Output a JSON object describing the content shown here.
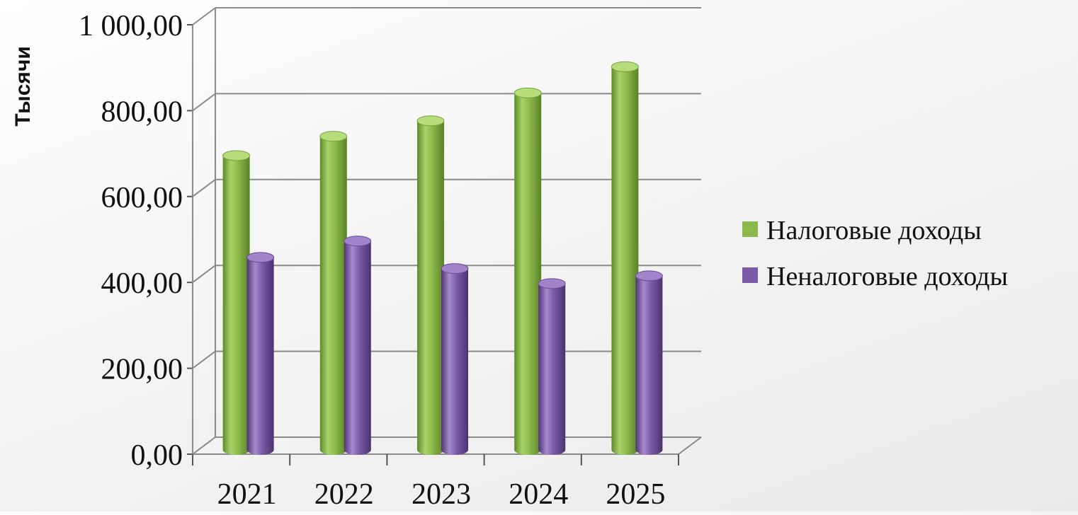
{
  "chart_data": {
    "type": "bar",
    "style": "3d-cylinder",
    "categories": [
      "2021",
      "2022",
      "2023",
      "2024",
      "2025"
    ],
    "series": [
      {
        "name": "Налоговые доходы",
        "color": "#8db84a",
        "values": [
          692,
          737,
          773,
          838,
          899
        ]
      },
      {
        "name": "Неналоговые доходы",
        "color": "#7b5ba6",
        "values": [
          455,
          493,
          429,
          394,
          412
        ]
      }
    ],
    "ylabel": "Тысячи",
    "xlabel": "",
    "ylim": [
      0,
      1000
    ],
    "yticks": [
      0,
      200,
      400,
      600,
      800,
      1000
    ],
    "ytick_labels": [
      "0,00",
      "200,00",
      "400,00",
      "600,00",
      "800,00",
      "1 000,00"
    ],
    "grid": true,
    "legend_position": "right"
  }
}
